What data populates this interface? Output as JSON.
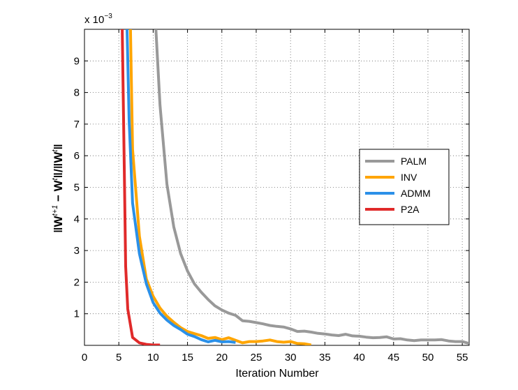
{
  "chart_data": {
    "type": "line",
    "xlabel": "Iteration Number",
    "ylabel": "‖W^{t+1} − W^t‖ / ‖W^t‖",
    "ylabel_parts": {
      "open": "‖W",
      "sup1": "t+1",
      "mid": " − W",
      "sup2": "t",
      "mid2": "‖/‖W",
      "sup3": "t",
      "close": "‖"
    },
    "y_exponent": {
      "base": "x 10",
      "power": "−3"
    },
    "xlim": [
      0,
      56
    ],
    "ylim": [
      0,
      10
    ],
    "y_scale_note": "values in units of 1e-3",
    "x_ticks": [
      0,
      5,
      10,
      15,
      20,
      25,
      30,
      35,
      40,
      45,
      50,
      55
    ],
    "x_tick_labels": [
      "0",
      "5",
      "10",
      "15",
      "20",
      "25",
      "30",
      "35",
      "40",
      "45",
      "50",
      "55"
    ],
    "y_ticks": [
      1,
      2,
      3,
      4,
      5,
      6,
      7,
      8,
      9
    ],
    "y_tick_labels": [
      "1",
      "2",
      "3",
      "4",
      "5",
      "6",
      "7",
      "8",
      "9"
    ],
    "grid": true,
    "legend_position": "right",
    "series": [
      {
        "name": "PALM",
        "color": "#999999",
        "x": [
          10.4,
          11,
          12,
          13,
          14,
          15,
          16,
          17,
          18,
          19,
          20,
          21,
          22,
          23,
          24,
          25,
          26,
          27,
          28,
          29,
          30,
          31,
          32,
          33,
          34,
          35,
          36,
          37,
          38,
          39,
          40,
          41,
          42,
          43,
          44,
          45,
          46,
          47,
          48,
          49,
          50,
          51,
          52,
          53,
          54,
          55,
          56
        ],
        "y": [
          10.0,
          7.6,
          5.1,
          3.75,
          2.9,
          2.35,
          1.95,
          1.68,
          1.45,
          1.25,
          1.12,
          1.02,
          0.95,
          0.78,
          0.76,
          0.72,
          0.68,
          0.63,
          0.6,
          0.58,
          0.52,
          0.44,
          0.45,
          0.42,
          0.38,
          0.36,
          0.33,
          0.31,
          0.35,
          0.3,
          0.29,
          0.26,
          0.24,
          0.25,
          0.27,
          0.2,
          0.21,
          0.17,
          0.15,
          0.17,
          0.17,
          0.17,
          0.18,
          0.14,
          0.12,
          0.12,
          0.06
        ]
      },
      {
        "name": "INV",
        "color": "#ffa500",
        "x": [
          6.7,
          7,
          8,
          9,
          10,
          11,
          12,
          13,
          14,
          15,
          16,
          17,
          18,
          19,
          20,
          21,
          22,
          23,
          24,
          25,
          26,
          27,
          28,
          29,
          30,
          31,
          32,
          33
        ],
        "y": [
          10.0,
          6.2,
          3.45,
          2.1,
          1.55,
          1.18,
          0.92,
          0.73,
          0.56,
          0.44,
          0.37,
          0.31,
          0.22,
          0.25,
          0.18,
          0.24,
          0.16,
          0.08,
          0.12,
          0.12,
          0.14,
          0.17,
          0.12,
          0.1,
          0.12,
          0.06,
          0.05,
          0.01
        ]
      },
      {
        "name": "ADMM",
        "color": "#2b90e8",
        "x": [
          6.2,
          6.5,
          7,
          8,
          9,
          10,
          11,
          12,
          13,
          14,
          15,
          16,
          17,
          18,
          19,
          20,
          21,
          22
        ],
        "y": [
          10.0,
          7.1,
          4.5,
          2.9,
          1.95,
          1.35,
          1.02,
          0.8,
          0.63,
          0.5,
          0.35,
          0.28,
          0.18,
          0.11,
          0.16,
          0.11,
          0.12,
          0.09
        ]
      },
      {
        "name": "P2A",
        "color": "#e02a2a",
        "x": [
          5.5,
          5.8,
          6,
          6.3,
          7,
          8,
          9,
          10,
          11
        ],
        "y": [
          10.0,
          5.5,
          2.5,
          1.15,
          0.25,
          0.08,
          0.03,
          0.01,
          0.01
        ]
      }
    ]
  }
}
